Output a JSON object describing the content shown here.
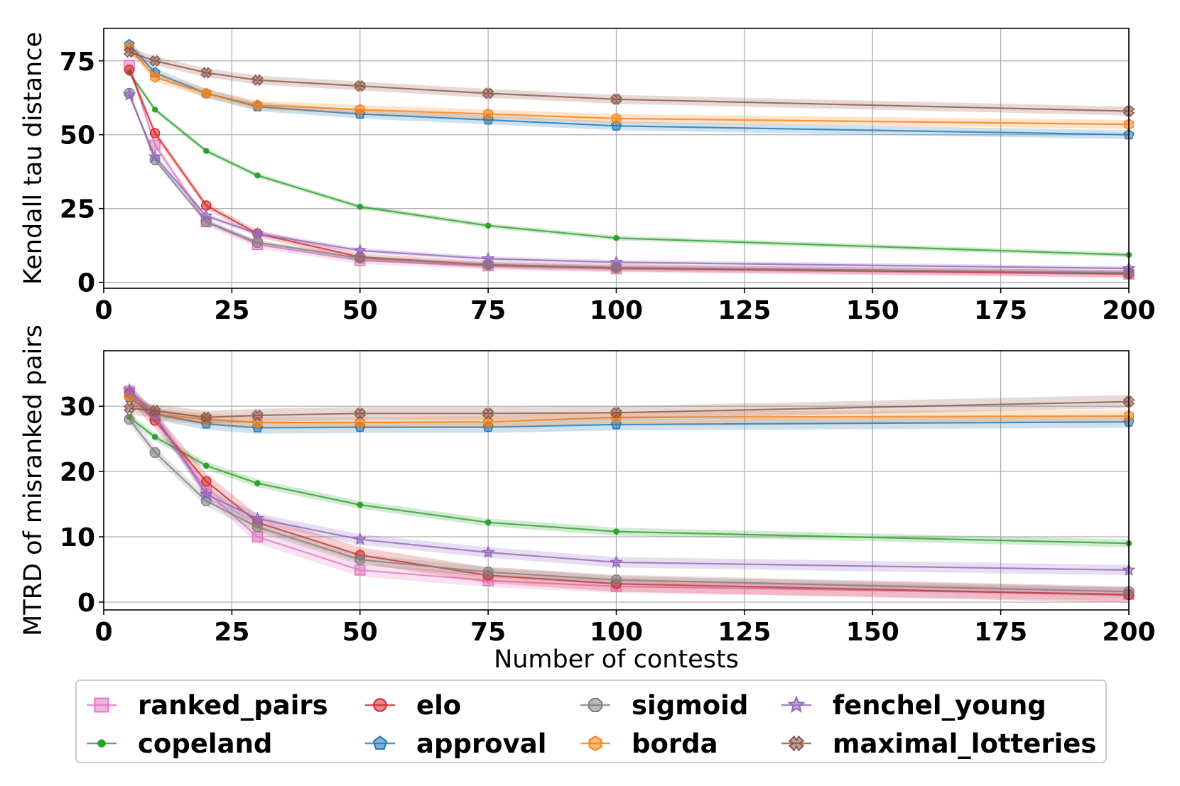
{
  "legend_labels": {
    "ranked_pairs": "ranked_pairs",
    "copeland": "copeland",
    "elo": "elo",
    "approval": "approval",
    "sigmoid": "sigmoid",
    "borda": "borda",
    "fenchel_young": "fenchel_young",
    "maximal_lotteries": "maximal_lotteries"
  },
  "chart_data": [
    {
      "type": "line",
      "title": "",
      "xlabel": "",
      "ylabel": "Kendall tau distance",
      "xlim": [
        0,
        200
      ],
      "ylim": [
        -2,
        86
      ],
      "xticks": [
        "0",
        "25",
        "50",
        "75",
        "100",
        "125",
        "150",
        "175",
        "200"
      ],
      "yticks": [
        "0",
        "25",
        "50",
        "75"
      ],
      "grid": true,
      "x": [
        5,
        10,
        20,
        30,
        50,
        75,
        100,
        200
      ],
      "series": [
        {
          "name": "ranked_pairs",
          "color": "#e377c2",
          "marker": "square",
          "values": [
            73.5,
            46.5,
            20.5,
            12.8,
            7.4,
            5.6,
            4.6,
            2.8
          ],
          "band": 1.2
        },
        {
          "name": "copeland",
          "color": "#2ca02c",
          "marker": "point",
          "values": [
            71.0,
            58.5,
            44.5,
            36.2,
            25.6,
            19.2,
            15.0,
            9.3
          ],
          "band": 0.8
        },
        {
          "name": "elo",
          "color": "#d62728",
          "marker": "circle",
          "values": [
            72.0,
            50.5,
            26.0,
            16.5,
            8.6,
            5.9,
            4.9,
            2.9
          ],
          "band": 1.2
        },
        {
          "name": "approval",
          "color": "#1f77b4",
          "marker": "pentagon",
          "values": [
            80.5,
            71.0,
            64.0,
            59.5,
            57.0,
            55.0,
            53.0,
            50.0
          ],
          "band": 1.5
        },
        {
          "name": "sigmoid",
          "color": "#7f7f7f",
          "marker": "octagon",
          "values": [
            64.0,
            41.5,
            20.5,
            13.5,
            8.2,
            6.0,
            5.0,
            3.3
          ],
          "band": 0.8
        },
        {
          "name": "borda",
          "color": "#ff7f0e",
          "marker": "hexagon",
          "values": [
            79.5,
            69.5,
            64.0,
            60.0,
            58.5,
            57.0,
            55.5,
            53.5
          ],
          "band": 1.5
        },
        {
          "name": "fenchel_young",
          "color": "#9467bd",
          "marker": "star",
          "values": [
            63.5,
            42.5,
            22.5,
            16.5,
            10.8,
            8.0,
            6.8,
            4.7
          ],
          "band": 0.8
        },
        {
          "name": "maximal_lotteries",
          "color": "#8c564b",
          "marker": "x",
          "values": [
            78.0,
            75.0,
            71.0,
            68.5,
            66.5,
            64.0,
            62.0,
            58.0
          ],
          "band": 1.5
        }
      ]
    },
    {
      "type": "line",
      "title": "",
      "xlabel": "Number of contests",
      "ylabel": "MTRD of misranked pairs",
      "xlim": [
        0,
        200
      ],
      "ylim": [
        -1.2,
        38.5
      ],
      "xticks": [
        "0",
        "25",
        "50",
        "75",
        "100",
        "125",
        "150",
        "175",
        "200"
      ],
      "yticks": [
        "0",
        "10",
        "20",
        "30"
      ],
      "grid": true,
      "x": [
        5,
        10,
        20,
        30,
        50,
        75,
        100,
        200
      ],
      "series": [
        {
          "name": "ranked_pairs",
          "color": "#e377c2",
          "marker": "square",
          "values": [
            32.3,
            28.5,
            17.0,
            10.0,
            4.9,
            3.3,
            2.4,
            1.2
          ],
          "band": 1.0
        },
        {
          "name": "copeland",
          "color": "#2ca02c",
          "marker": "point",
          "values": [
            28.3,
            25.3,
            20.9,
            18.2,
            14.9,
            12.2,
            10.8,
            9.0
          ],
          "band": 0.6
        },
        {
          "name": "elo",
          "color": "#d62728",
          "marker": "circle",
          "values": [
            32.0,
            27.8,
            18.5,
            12.2,
            7.2,
            4.1,
            2.8,
            1.1
          ],
          "band": 1.2
        },
        {
          "name": "approval",
          "color": "#1f77b4",
          "marker": "pentagon",
          "values": [
            31.3,
            28.8,
            27.3,
            26.7,
            26.8,
            26.8,
            27.2,
            27.6
          ],
          "band": 0.9
        },
        {
          "name": "sigmoid",
          "color": "#7f7f7f",
          "marker": "octagon",
          "values": [
            28.0,
            22.9,
            15.5,
            11.5,
            6.5,
            4.6,
            3.4,
            1.6
          ],
          "band": 0.8
        },
        {
          "name": "borda",
          "color": "#ff7f0e",
          "marker": "hexagon",
          "values": [
            31.5,
            28.8,
            28.0,
            27.5,
            27.5,
            27.6,
            28.3,
            28.5
          ],
          "band": 0.9
        },
        {
          "name": "fenchel_young",
          "color": "#9467bd",
          "marker": "star",
          "values": [
            32.5,
            28.5,
            16.5,
            12.8,
            9.6,
            7.6,
            6.1,
            4.9
          ],
          "band": 0.8
        },
        {
          "name": "maximal_lotteries",
          "color": "#8c564b",
          "marker": "x",
          "values": [
            29.7,
            29.3,
            28.3,
            28.6,
            28.9,
            28.9,
            29.0,
            30.7
          ],
          "band": 1.0
        }
      ]
    }
  ]
}
